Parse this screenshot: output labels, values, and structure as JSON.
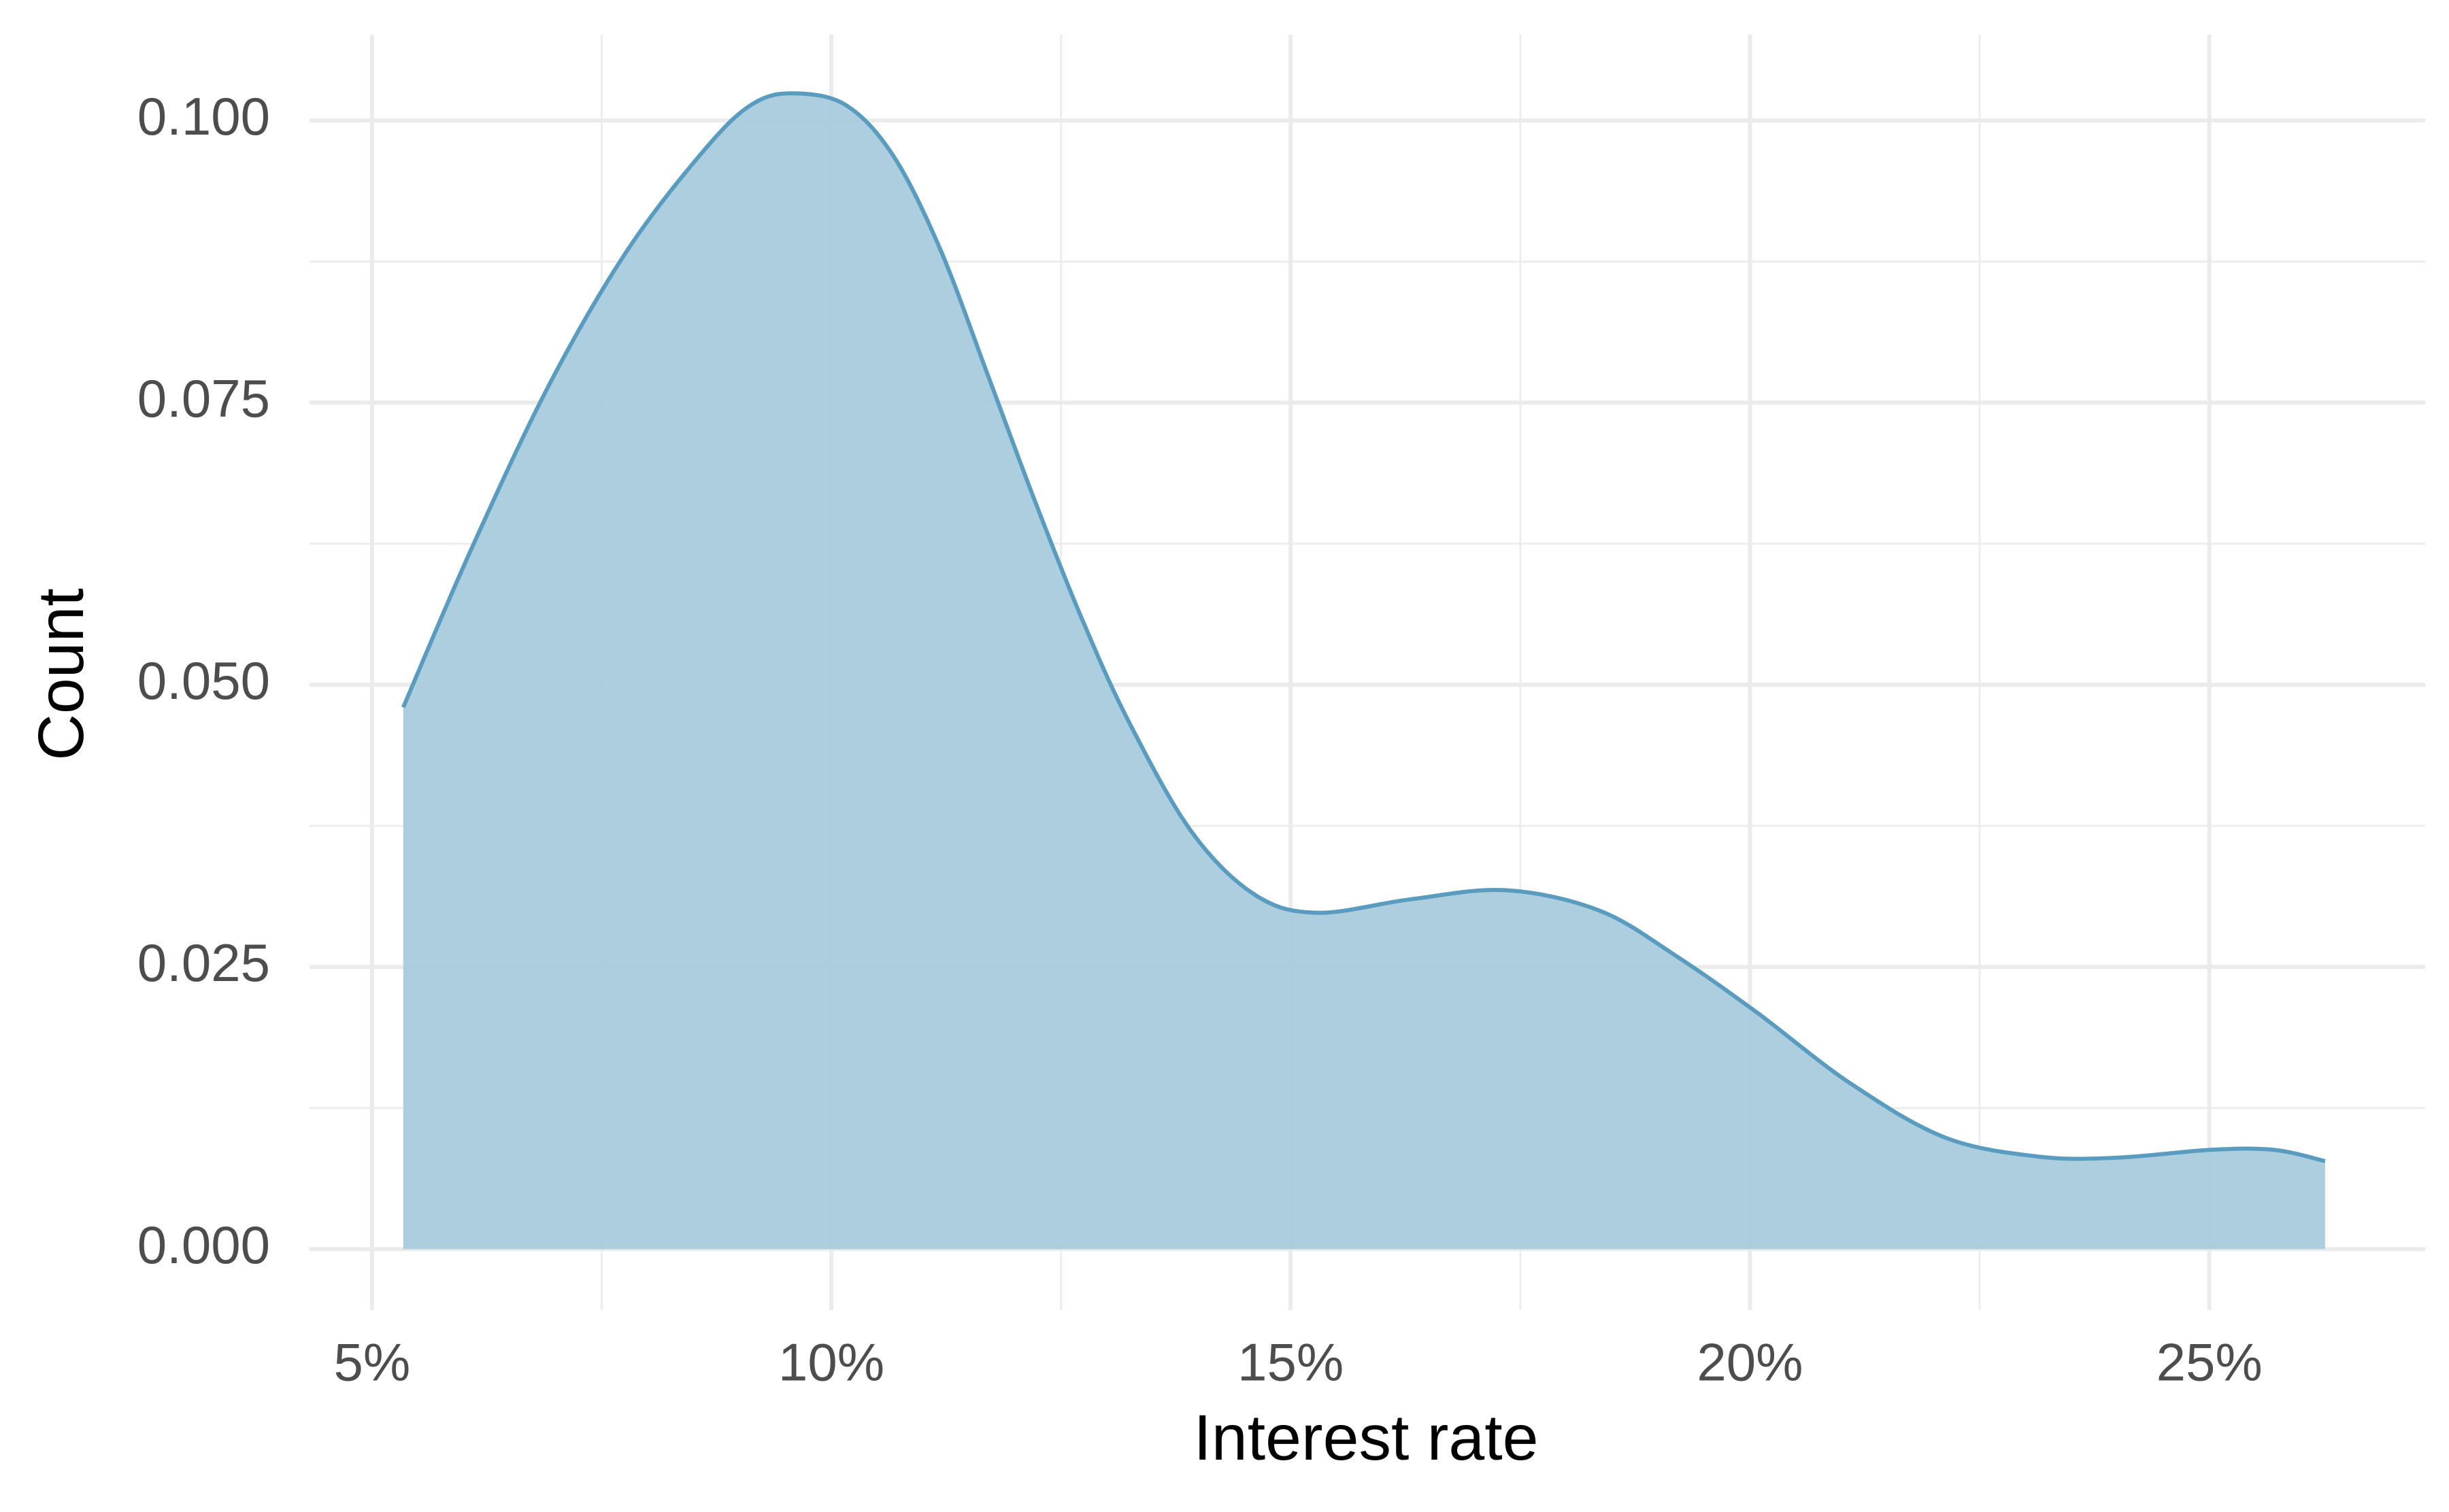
{
  "chart_data": {
    "type": "area",
    "x_label": "Interest rate",
    "y_label": "Count",
    "x": [
      5.34,
      6.08,
      6.93,
      7.78,
      8.63,
      9.15,
      9.61,
      10.17,
      10.68,
      11.19,
      11.71,
      12.22,
      12.73,
      13.24,
      13.92,
      14.61,
      15.29,
      16.31,
      17.34,
      18.36,
      19.21,
      20.07,
      21.09,
      22.12,
      23.14,
      23.99,
      25.02,
      25.7,
      26.26
    ],
    "values": [
      0.048,
      0.062,
      0.0766,
      0.0885,
      0.0975,
      0.1015,
      0.1024,
      0.1013,
      0.0968,
      0.0885,
      0.0773,
      0.0662,
      0.0558,
      0.0467,
      0.037,
      0.0314,
      0.0298,
      0.031,
      0.0318,
      0.03,
      0.0259,
      0.021,
      0.0147,
      0.0099,
      0.0082,
      0.0081,
      0.0088,
      0.0088,
      0.0078
    ],
    "color": "#5a9cbf",
    "fill": "#a9cbdc",
    "xlim": [
      4.32,
      27.35
    ],
    "ylim": [
      -0.0054,
      0.1076
    ],
    "xticks": [
      {
        "value": 5,
        "label": "5%"
      },
      {
        "value": 10,
        "label": "10%"
      },
      {
        "value": 15,
        "label": "15%"
      },
      {
        "value": 20,
        "label": "20%"
      },
      {
        "value": 25,
        "label": "25%"
      }
    ],
    "yticks": [
      {
        "value": 0,
        "label": "0.000"
      },
      0.025,
      {
        "value": 0.05,
        "label": "0.050"
      },
      0.075,
      {
        "value": 0.1,
        "label": "0.100"
      }
    ],
    "grid": true
  }
}
